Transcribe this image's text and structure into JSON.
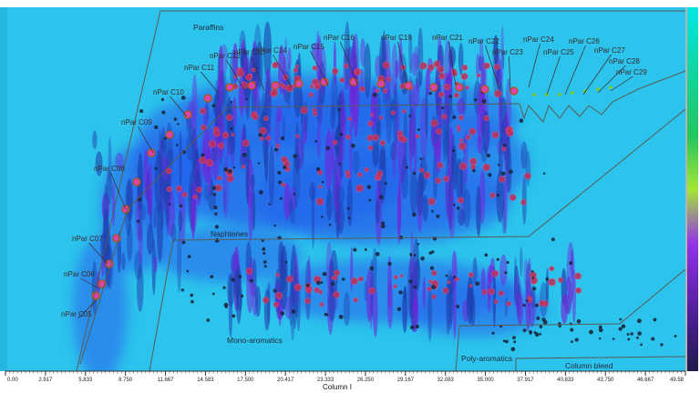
{
  "chart_data": {
    "type": "heatmap",
    "title": "",
    "xlabel": "Column I",
    "ylabel": "",
    "xlim": [
      0.0,
      49.58
    ],
    "x_ticks": [
      "0.00",
      "2.917",
      "5.833",
      "8.750",
      "11.667",
      "14.583",
      "17.500",
      "20.417",
      "23.333",
      "26.250",
      "29.167",
      "32.083",
      "35.000",
      "37.917",
      "40.833",
      "43.750",
      "46.667",
      "49.58"
    ],
    "color_scale": [
      "#00e6e6",
      "#22c55e",
      "#a3e635",
      "#9333ea",
      "#7c3aed",
      "#1e1b4b"
    ],
    "regions": [
      {
        "label": "Paraffins"
      },
      {
        "label": "Naphtenes"
      },
      {
        "label": "Mono-aromatics"
      },
      {
        "label": "Poly-aromatics"
      },
      {
        "label": "Column bleed"
      }
    ],
    "peak_labels": [
      {
        "label": "nPar C05",
        "x": 7.0
      },
      {
        "label": "nPar C06",
        "x": 7.6
      },
      {
        "label": "nPar C07",
        "x": 8.0
      },
      {
        "label": "nPar C08",
        "x": 8.9
      },
      {
        "label": "nPar C09",
        "x": 10.0
      },
      {
        "label": "nPar C10",
        "x": 12.0
      },
      {
        "label": "nPar C11",
        "x": 14.5
      },
      {
        "label": "nPar C12",
        "x": 16.5
      },
      {
        "label": "nPar C13",
        "x": 18.9
      },
      {
        "label": "nPar C14",
        "x": 21.3
      },
      {
        "label": "nPar C15",
        "x": 23.5
      },
      {
        "label": "nPar C16",
        "x": 26.0
      },
      {
        "label": "nPar C19",
        "x": 30.0
      },
      {
        "label": "nPar C21",
        "x": 33.0
      },
      {
        "label": "nPar C22",
        "x": 35.5
      },
      {
        "label": "nPar C23",
        "x": 36.3
      },
      {
        "label": "nPar C24",
        "x": 38.5
      },
      {
        "label": "nPar C25",
        "x": 40.4
      },
      {
        "label": "nPar C26",
        "x": 42.2
      },
      {
        "label": "nPar C27",
        "x": 43.6
      },
      {
        "label": "nPar C28",
        "x": 44.9
      },
      {
        "label": "nPar C29",
        "x": 46.3
      }
    ]
  }
}
